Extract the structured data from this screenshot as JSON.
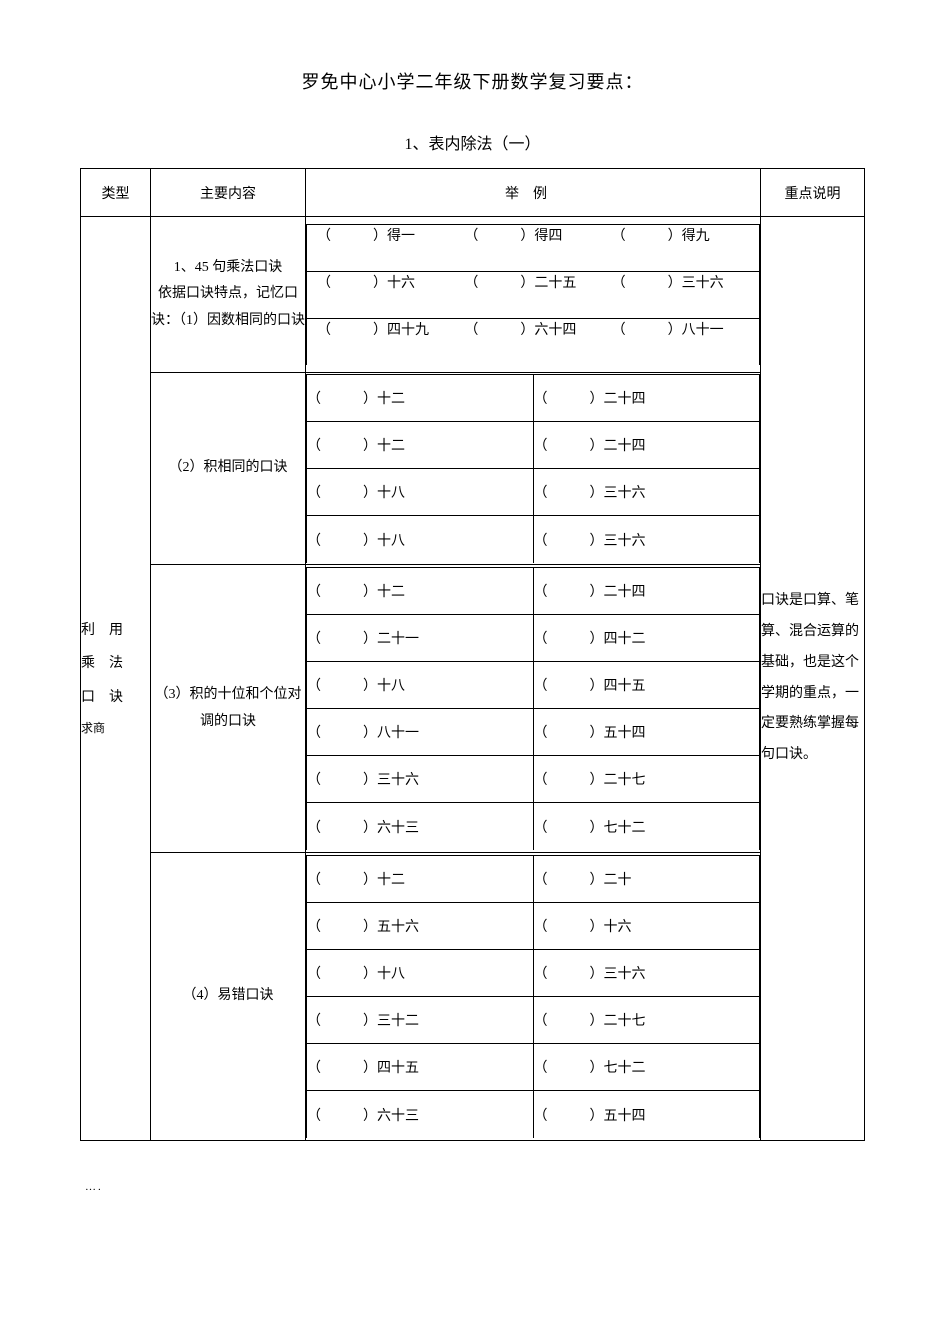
{
  "page_title": "罗免中心小学二年级下册数学复习要点：",
  "section_title": "1、表内除法（一）",
  "headers": {
    "type": "类型",
    "content": "主要内容",
    "examples": "举例",
    "notes": "重点说明"
  },
  "type_label_lines": [
    "利　用",
    "乘　法",
    "口　诀"
  ],
  "type_label_small": "求商",
  "notes_text": "口诀是口算、笔算、混合运算的基础，也是这个学期的重点，一定要熟练掌握每句口诀。",
  "sections": [
    {
      "content_lines": [
        "1、45 句乘法口诀",
        "依据口诀特点，记忆口诀：（1）因数相同的口诀"
      ],
      "cols": 3,
      "rows": [
        [
          "（　　　）得一",
          "（　　　）得四",
          "（　　　）得九"
        ],
        [
          "（　　　）十六",
          "（　　　）二十五",
          "（　　　）三十六"
        ],
        [
          "（　　　）四十九",
          "（　　　）六十四",
          "（　　　）八十一"
        ]
      ]
    },
    {
      "content_lines": [
        "（2）积相同的口诀"
      ],
      "cols": 2,
      "rows": [
        [
          "（　　　）十二",
          "（　　　）二十四"
        ],
        [
          "（　　　）十二",
          "（　　　）二十四"
        ],
        [
          "（　　　）十八",
          "（　　　）三十六"
        ],
        [
          "（　　　）十八",
          "（　　　）三十六"
        ]
      ]
    },
    {
      "content_lines": [
        "（3）积的十位和个位对调的口诀"
      ],
      "cols": 2,
      "rows": [
        [
          "（　　　）十二",
          "（　　　）二十四"
        ],
        [
          "（　　　）二十一",
          "（　　　）四十二"
        ],
        [
          "（　　　）十八",
          "（　　　）四十五"
        ],
        [
          "（　　　）八十一",
          "（　　　）五十四"
        ],
        [
          "（　　　）三十六",
          "（　　　）二十七"
        ],
        [
          "（　　　）六十三",
          "（　　　）七十二"
        ]
      ]
    },
    {
      "content_lines": [
        "（4）易错口诀"
      ],
      "cols": 2,
      "rows": [
        [
          "（　　　）十二",
          "（　　　）二十"
        ],
        [
          "（　　　）五十六",
          "（　　　）十六"
        ],
        [
          "（　　　）十八",
          "（　　　）三十六"
        ],
        [
          "（　　　）三十二",
          "（　　　）二十七"
        ],
        [
          "（　　　）四十五",
          "（　　　）七十二"
        ],
        [
          "（　　　）六十三",
          "（　　　）五十四"
        ]
      ]
    }
  ],
  "footer": "…."
}
